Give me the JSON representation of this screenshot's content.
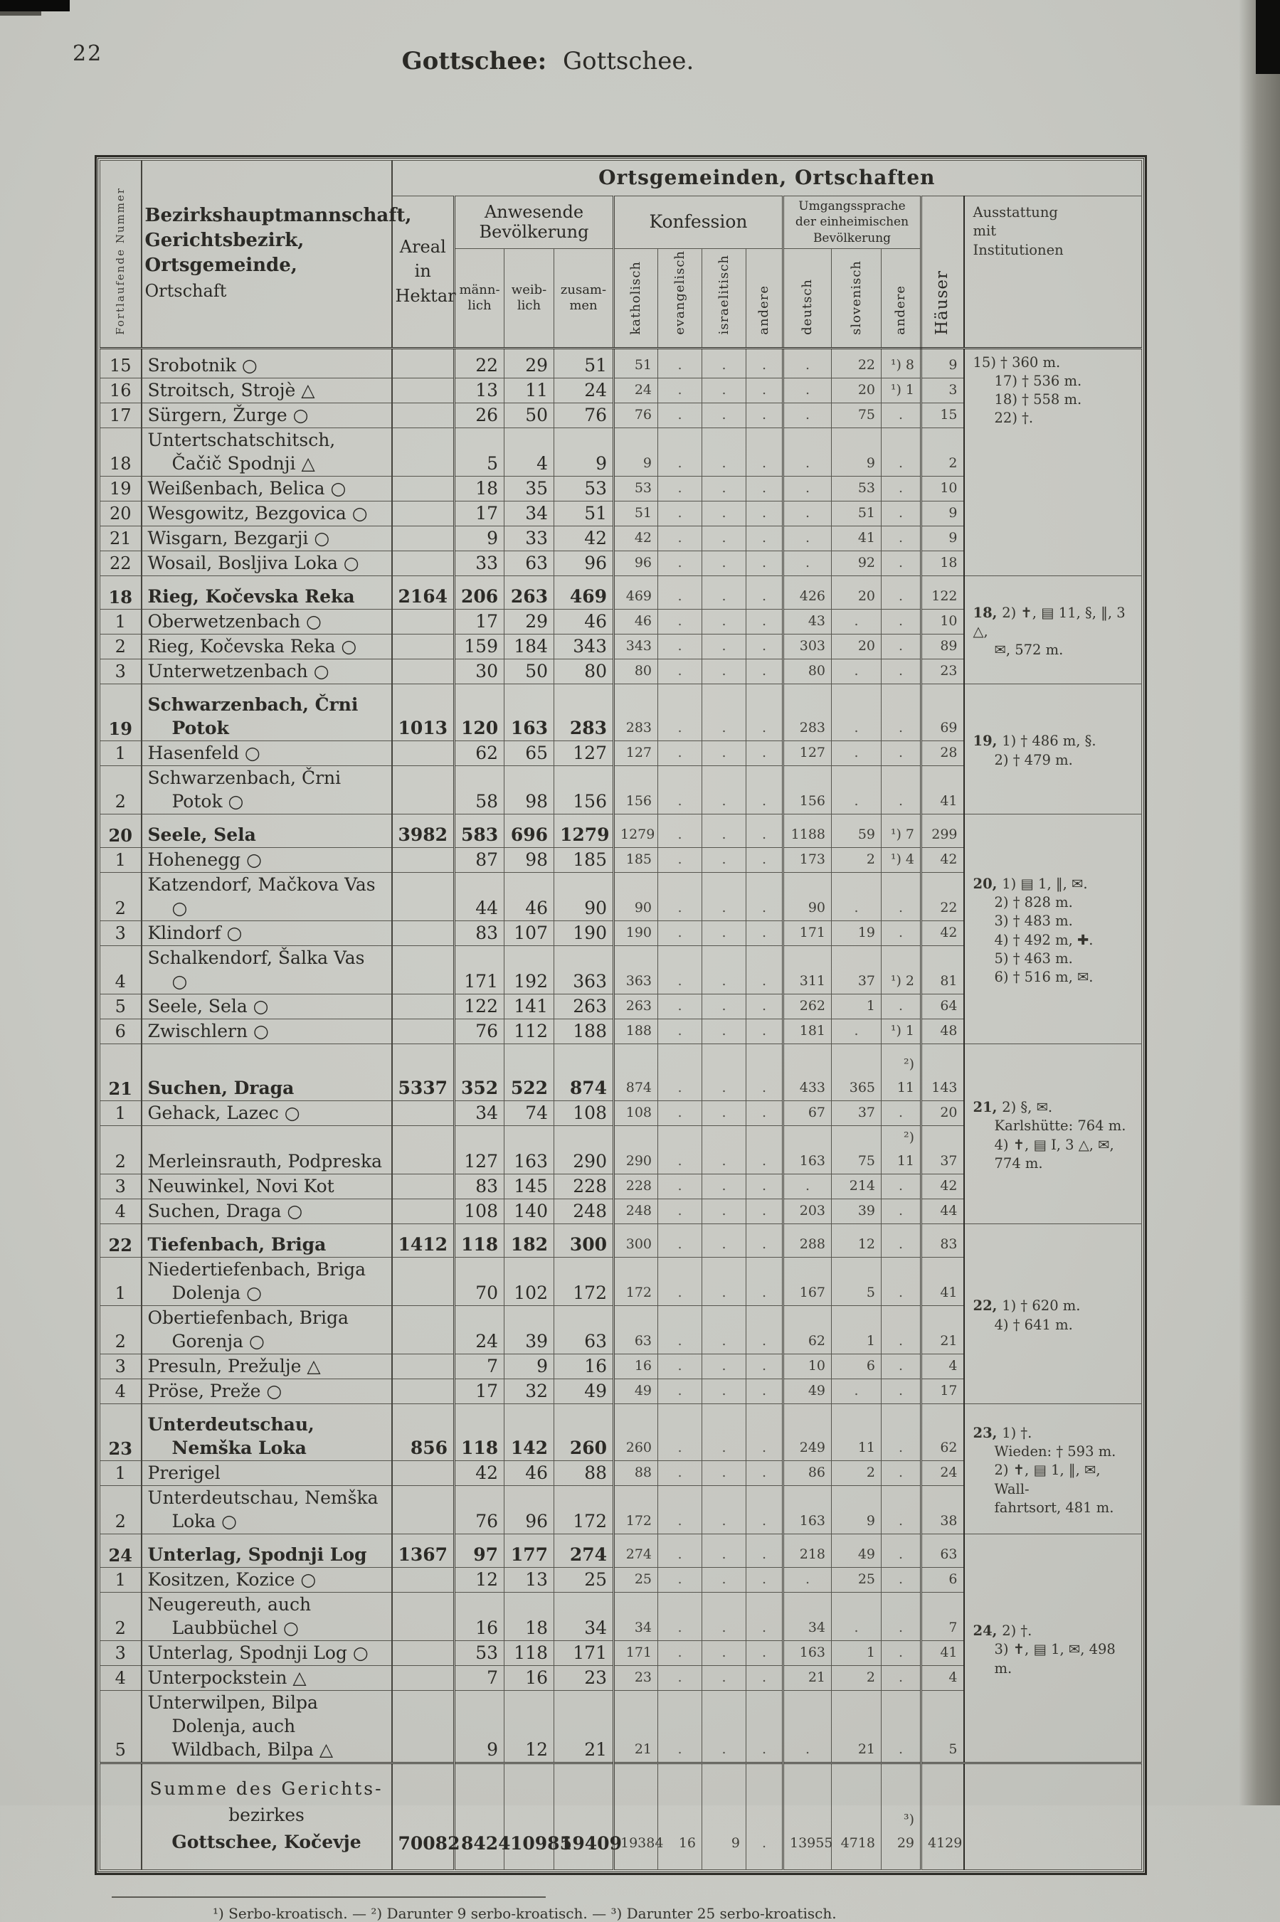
{
  "page": {
    "number": "22",
    "title_main": "Gottschee:",
    "title_sub": "Gottschee."
  },
  "header": {
    "fortlaufende_nummer": "Fortlaufende Nummer",
    "bezirk_lines": [
      "Bezirkshauptmannschaft,",
      "Gerichtsbezirk,",
      "Ortsgemeinde,",
      "Ortschaft"
    ],
    "ortsgemeinden": "Ortsgemeinden, Ortschaften",
    "areal_lines": [
      "Areal",
      "in",
      "Hektar"
    ],
    "anwesende_lines": [
      "Anwesende",
      "Bevölkerung"
    ],
    "maennlich_lines": [
      "männ-",
      "lich"
    ],
    "weiblich_lines": [
      "weib-",
      "lich"
    ],
    "zusammen_lines": [
      "zusam-",
      "men"
    ],
    "konfession": "Konfession",
    "katholisch": "katholisch",
    "evangelisch": "evangelisch",
    "israelitisch": "israelitisch",
    "andere_konfession": "andere",
    "umgangssprache_lines": [
      "Umgangssprache",
      "der einheimischen",
      "Bevölkerung"
    ],
    "deutsch": "deutsch",
    "slovenisch": "slovenisch",
    "andere_sprache": "andere",
    "haeuser": "Häuser",
    "ausstattung_lines": [
      "Ausstattung",
      "mit",
      "Institutionen"
    ]
  },
  "groups": [
    {
      "hd": false,
      "note": {
        "label": "",
        "lines": [
          "15) † 360 m.",
          "17) † 536 m.",
          "18) † 558 m.",
          "22) †."
        ]
      },
      "rows": [
        [
          "15",
          "Srobotnik ○",
          "",
          "22",
          "29",
          "51",
          "51",
          ".",
          ".",
          ".",
          ".",
          "22",
          "¹) 8",
          "9"
        ],
        [
          "16",
          "Stroitsch, Strojè △",
          "",
          "13",
          "11",
          "24",
          "24",
          ".",
          ".",
          ".",
          ".",
          "20",
          "¹) 1",
          "3"
        ],
        [
          "17",
          "Sürgern, Žurge ○",
          "",
          "26",
          "50",
          "76",
          "76",
          ".",
          ".",
          ".",
          ".",
          "75",
          ".",
          "15"
        ],
        [
          "18",
          "Untertschatschitsch, Čačič Spodnji △",
          "",
          "5",
          "4",
          "9",
          "9",
          ".",
          ".",
          ".",
          ".",
          "9",
          ".",
          "2"
        ],
        [
          "19",
          "Weißenbach, Belica ○",
          "",
          "18",
          "35",
          "53",
          "53",
          ".",
          ".",
          ".",
          ".",
          "53",
          ".",
          "10"
        ],
        [
          "20",
          "Wesgowitz, Bezgovica ○",
          "",
          "17",
          "34",
          "51",
          "51",
          ".",
          ".",
          ".",
          ".",
          "51",
          ".",
          "9"
        ],
        [
          "21",
          "Wisgarn, Bezgarji ○",
          "",
          "9",
          "33",
          "42",
          "42",
          ".",
          ".",
          ".",
          ".",
          "41",
          ".",
          "9"
        ],
        [
          "22",
          "Wosail, Bosljiva Loka ○",
          "",
          "33",
          "63",
          "96",
          "96",
          ".",
          ".",
          ".",
          ".",
          "92",
          ".",
          "18"
        ]
      ]
    },
    {
      "hd": true,
      "note": {
        "label": "18,",
        "lines": [
          "2) ✝, ▤ 11, §, ‖, 3 △,",
          "✉, 572 m."
        ]
      },
      "rows": [
        [
          "18",
          "Rieg, Kočevska Reka",
          "2164",
          "206",
          "263",
          "469",
          "469",
          ".",
          ".",
          ".",
          "426",
          "20",
          ".",
          "122"
        ],
        [
          "1",
          "Oberwetzenbach ○",
          "",
          "17",
          "29",
          "46",
          "46",
          ".",
          ".",
          ".",
          "43",
          ".",
          ".",
          "10"
        ],
        [
          "2",
          "Rieg, Kočevska Reka ○",
          "",
          "159",
          "184",
          "343",
          "343",
          ".",
          ".",
          ".",
          "303",
          "20",
          ".",
          "89"
        ],
        [
          "3",
          "Unterwetzenbach ○",
          "",
          "30",
          "50",
          "80",
          "80",
          ".",
          ".",
          ".",
          "80",
          ".",
          ".",
          "23"
        ]
      ]
    },
    {
      "hd": true,
      "note": {
        "label": "19,",
        "lines": [
          "1) † 486 m, §.",
          "2) † 479 m."
        ]
      },
      "rows": [
        [
          "19",
          "Schwarzenbach, Črni Potok",
          "1013",
          "120",
          "163",
          "283",
          "283",
          ".",
          ".",
          ".",
          "283",
          ".",
          ".",
          "69"
        ],
        [
          "1",
          "Hasenfeld ○",
          "",
          "62",
          "65",
          "127",
          "127",
          ".",
          ".",
          ".",
          "127",
          ".",
          ".",
          "28"
        ],
        [
          "2",
          "Schwarzenbach, Črni Potok ○",
          "",
          "58",
          "98",
          "156",
          "156",
          ".",
          ".",
          ".",
          "156",
          ".",
          ".",
          "41"
        ]
      ]
    },
    {
      "hd": true,
      "note": {
        "label": "20,",
        "lines": [
          "1) ▤ 1, ‖, ✉.",
          "2) † 828 m.",
          "3) † 483 m.",
          "4) † 492 m, ✚.",
          "5) † 463 m.",
          "6) † 516 m, ✉."
        ]
      },
      "rows": [
        [
          "20",
          "Seele, Sela",
          "3982",
          "583",
          "696",
          "1279",
          "1279",
          ".",
          ".",
          ".",
          "1188",
          "59",
          "¹) 7",
          "299"
        ],
        [
          "1",
          "Hohenegg ○",
          "",
          "87",
          "98",
          "185",
          "185",
          ".",
          ".",
          ".",
          "173",
          "2",
          "¹) 4",
          "42"
        ],
        [
          "2",
          "Katzendorf, Mačkova Vas ○",
          "",
          "44",
          "46",
          "90",
          "90",
          ".",
          ".",
          ".",
          "90",
          ".",
          ".",
          "22"
        ],
        [
          "3",
          "Klindorf ○",
          "",
          "83",
          "107",
          "190",
          "190",
          ".",
          ".",
          ".",
          "171",
          "19",
          ".",
          "42"
        ],
        [
          "4",
          "Schalkendorf, Šalka Vas ○",
          "",
          "171",
          "192",
          "363",
          "363",
          ".",
          ".",
          ".",
          "311",
          "37",
          "¹) 2",
          "81"
        ],
        [
          "5",
          "Seele, Sela ○",
          "",
          "122",
          "141",
          "263",
          "263",
          ".",
          ".",
          ".",
          "262",
          "1",
          ".",
          "64"
        ],
        [
          "6",
          "Zwischlern ○",
          "",
          "76",
          "112",
          "188",
          "188",
          ".",
          ".",
          ".",
          "181",
          ".",
          "¹) 1",
          "48"
        ]
      ]
    },
    {
      "hd": true,
      "note": {
        "label": "21,",
        "lines": [
          "2) §, ✉.",
          "Karlshütte: 764 m.",
          "4) ✝, ▤ I, 3 △, ✉,",
          "774 m."
        ]
      },
      "rows": [
        [
          "21",
          "Suchen, Draga",
          "5337",
          "352",
          "522",
          "874",
          "874",
          ".",
          ".",
          ".",
          "433",
          "365",
          "²) 11",
          "143"
        ],
        [
          "1",
          "Gehack, Lazec ○",
          "",
          "34",
          "74",
          "108",
          "108",
          ".",
          ".",
          ".",
          "67",
          "37",
          ".",
          "20"
        ],
        [
          "2",
          "Merleinsrauth, Podpreska",
          "",
          "127",
          "163",
          "290",
          "290",
          ".",
          ".",
          ".",
          "163",
          "75",
          "²) 11",
          "37"
        ],
        [
          "3",
          "Neuwinkel, Novi Kot",
          "",
          "83",
          "145",
          "228",
          "228",
          ".",
          ".",
          ".",
          ".",
          "214",
          ".",
          "42"
        ],
        [
          "4",
          "Suchen, Draga ○",
          "",
          "108",
          "140",
          "248",
          "248",
          ".",
          ".",
          ".",
          "203",
          "39",
          ".",
          "44"
        ]
      ]
    },
    {
      "hd": true,
      "note": {
        "label": "22,",
        "lines": [
          "1) † 620 m.",
          "4) † 641 m."
        ]
      },
      "rows": [
        [
          "22",
          "Tiefenbach, Briga",
          "1412",
          "118",
          "182",
          "300",
          "300",
          ".",
          ".",
          ".",
          "288",
          "12",
          ".",
          "83"
        ],
        [
          "1",
          "Niedertiefenbach, Briga Dolenja ○",
          "",
          "70",
          "102",
          "172",
          "172",
          ".",
          ".",
          ".",
          "167",
          "5",
          ".",
          "41"
        ],
        [
          "2",
          "Obertiefenbach, Briga Gorenja ○",
          "",
          "24",
          "39",
          "63",
          "63",
          ".",
          ".",
          ".",
          "62",
          "1",
          ".",
          "21"
        ],
        [
          "3",
          "Presuln, Prežulje △",
          "",
          "7",
          "9",
          "16",
          "16",
          ".",
          ".",
          ".",
          "10",
          "6",
          ".",
          "4"
        ],
        [
          "4",
          "Pröse, Preže ○",
          "",
          "17",
          "32",
          "49",
          "49",
          ".",
          ".",
          ".",
          "49",
          ".",
          ".",
          "17"
        ]
      ]
    },
    {
      "hd": true,
      "note": {
        "label": "23,",
        "lines": [
          "1) †.",
          "Wieden: † 593 m.",
          "2) ✝, ▤ 1, ‖, ✉, Wall-",
          "fahrtsort, 481 m."
        ]
      },
      "rows": [
        [
          "23",
          "Unterdeutschau, Nemška Loka",
          "856",
          "118",
          "142",
          "260",
          "260",
          ".",
          ".",
          ".",
          "249",
          "11",
          ".",
          "62"
        ],
        [
          "1",
          "Prerigel",
          "",
          "42",
          "46",
          "88",
          "88",
          ".",
          ".",
          ".",
          "86",
          "2",
          ".",
          "24"
        ],
        [
          "2",
          "Unterdeutschau, Nemška Loka ○",
          "",
          "76",
          "96",
          "172",
          "172",
          ".",
          ".",
          ".",
          "163",
          "9",
          ".",
          "38"
        ]
      ]
    },
    {
      "hd": true,
      "note": {
        "label": "24,",
        "lines": [
          "2) †.",
          "3) ✝, ▤ 1, ✉, 498 m."
        ]
      },
      "rows": [
        [
          "24",
          "Unterlag, Spodnji Log",
          "1367",
          "97",
          "177",
          "274",
          "274",
          ".",
          ".",
          ".",
          "218",
          "49",
          ".",
          "63"
        ],
        [
          "1",
          "Kositzen, Kozice ○",
          "",
          "12",
          "13",
          "25",
          "25",
          ".",
          ".",
          ".",
          ".",
          "25",
          ".",
          "6"
        ],
        [
          "2",
          "Neugereuth, auch Laubbüchel ○",
          "",
          "16",
          "18",
          "34",
          "34",
          ".",
          ".",
          ".",
          "34",
          ".",
          ".",
          "7"
        ],
        [
          "3",
          "Unterlag, Spodnji Log ○",
          "",
          "53",
          "118",
          "171",
          "171",
          ".",
          ".",
          ".",
          "163",
          "1",
          ".",
          "41"
        ],
        [
          "4",
          "Unterpockstein △",
          "",
          "7",
          "16",
          "23",
          "23",
          ".",
          ".",
          ".",
          "21",
          "2",
          ".",
          "4"
        ],
        [
          "5",
          "Unterwilpen, Bilpa Dolenja, auch Wildbach, Bilpa △",
          "",
          "9",
          "12",
          "21",
          "21",
          ".",
          ".",
          ".",
          ".",
          "21",
          ".",
          "5"
        ]
      ]
    }
  ],
  "summe": {
    "name_lines": [
      "Summe des Gerichts-",
      "bezirkes",
      "Gottschee, Kočevje"
    ],
    "row": [
      "",
      "",
      "70082",
      "8424",
      "10985",
      "19409",
      "19384",
      "16",
      "9",
      ".",
      "13955",
      "4718",
      "³) 29",
      "4129"
    ]
  },
  "footnote": "¹) Serbo-kroatisch. — ²) Darunter 9 serbo-kroatisch. — ³) Darunter 25 serbo-kroatisch."
}
